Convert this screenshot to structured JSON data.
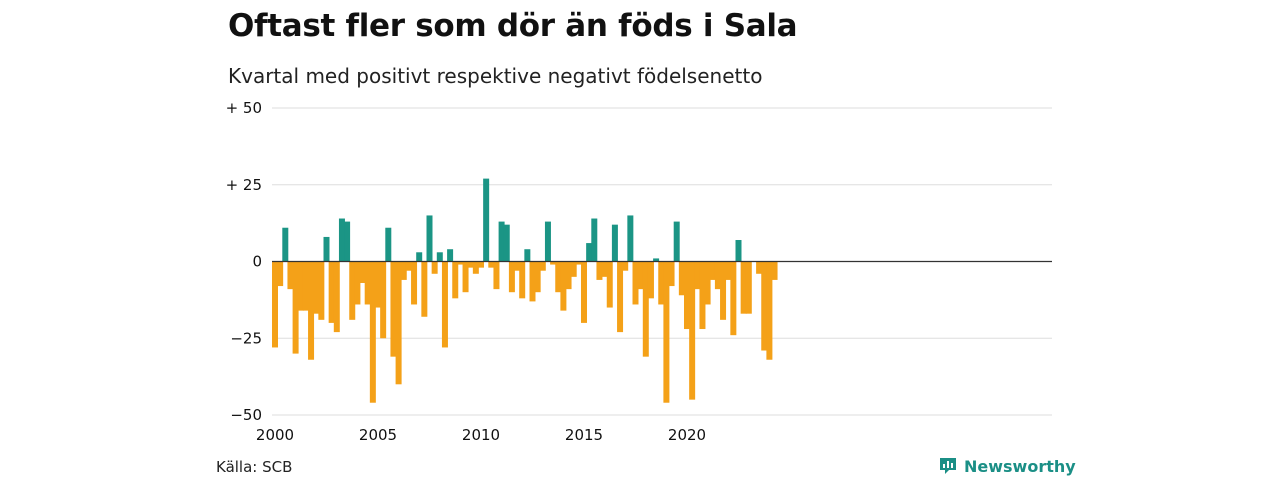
{
  "title": "Oftast fler som dör än föds i Sala",
  "subtitle": "Kvartal med positivt respektive negativt födelsenetto",
  "source": "Källa: SCB",
  "brand": {
    "name": "Newsworthy",
    "icon": "newsworthy-logo-icon"
  },
  "colors": {
    "positive": "#1b9585",
    "negative": "#f4a118",
    "grid": "#dddddd",
    "zero": "#333333"
  },
  "chart_data": {
    "type": "bar",
    "title": "Oftast fler som dör än föds i Sala",
    "subtitle": "Kvartal med positivt respektive negativt födelsenetto",
    "xlabel": "",
    "ylabel": "",
    "ylim": [
      -50,
      50
    ],
    "yticks": [
      {
        "value": 50,
        "label": "+ 50"
      },
      {
        "value": 25,
        "label": "+ 25"
      },
      {
        "value": 0,
        "label": "0"
      },
      {
        "value": -25,
        "label": "−25"
      },
      {
        "value": -50,
        "label": "−50"
      }
    ],
    "xticks": [
      "2000",
      "2005",
      "2010",
      "2015",
      "2020"
    ],
    "start_period": "2000 Q1",
    "values": [
      -28,
      -8,
      11,
      -9,
      -30,
      -16,
      -16,
      -32,
      -17,
      -19,
      8,
      -20,
      -23,
      14,
      13,
      -19,
      -14,
      -7,
      -14,
      -46,
      -15,
      -25,
      11,
      -31,
      -40,
      -6,
      -3,
      -14,
      3,
      -18,
      15,
      -4,
      3,
      -28,
      4,
      -12,
      -1,
      -10,
      -2,
      -4,
      -2,
      27,
      -2,
      -9,
      13,
      12,
      -10,
      -3,
      -12,
      4,
      -13,
      -10,
      -3,
      13,
      -1,
      -10,
      -16,
      -9,
      -5,
      -1,
      -20,
      6,
      14,
      -6,
      -5,
      -15,
      12,
      -23,
      -3,
      15,
      -14,
      -9,
      -31,
      -12,
      1,
      -14,
      -46,
      -8,
      13,
      -11,
      -22,
      -45,
      -9,
      -22,
      -14,
      -6,
      -9,
      -19,
      -6,
      -24,
      7,
      -17,
      -17,
      0,
      -4,
      -29,
      -32,
      -6
    ],
    "legend": "none",
    "grid": true
  }
}
